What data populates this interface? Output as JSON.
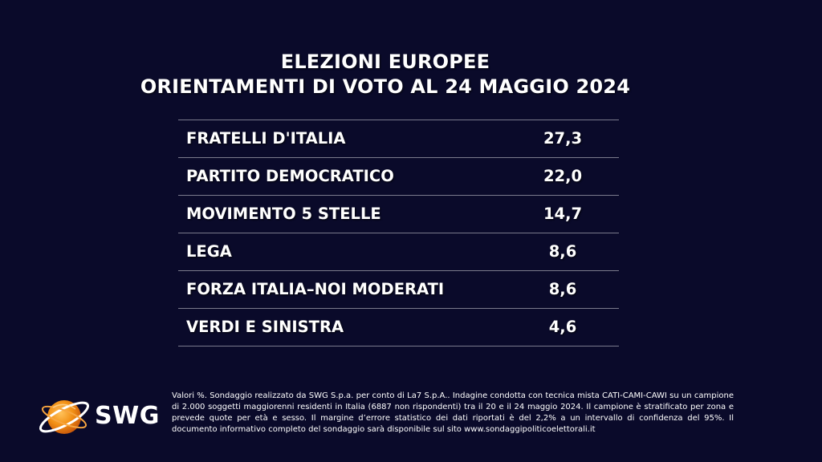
{
  "header": {
    "title_line1": "ELEZIONI EUROPEE",
    "title_line2": "ORIENTAMENTI DI VOTO AL 24 MAGGIO 2024"
  },
  "chart_data": {
    "type": "table",
    "title": "ELEZIONI EUROPEE ORIENTAMENTI DI VOTO AL 24 MAGGIO 2024",
    "rows": [
      {
        "party": "FRATELLI D'ITALIA",
        "value_label": "27,3",
        "value": 27.3
      },
      {
        "party": "PARTITO DEMOCRATICO",
        "value_label": "22,0",
        "value": 22.0
      },
      {
        "party": "MOVIMENTO 5 STELLE",
        "value_label": "14,7",
        "value": 14.7
      },
      {
        "party": "LEGA",
        "value_label": "8,6",
        "value": 8.6
      },
      {
        "party": "FORZA ITALIA–NOI MODERATI",
        "value_label": "8,6",
        "value": 8.6
      },
      {
        "party": "VERDI E SINISTRA",
        "value_label": "4,6",
        "value": 4.6
      }
    ]
  },
  "logo": {
    "text": "SWG",
    "icon": "swg-globe-icon",
    "colors": {
      "orange": "#f29015",
      "dark_orange": "#d4600a",
      "white": "#ffffff"
    }
  },
  "footnote": {
    "text": "Valori %. Sondaggio realizzato da SWG S.p.a. per conto di La7 S.p.A.. Indagine condotta con tecnica mista CATI-CAMI-CAWI su un campione di 2.000 soggetti maggiorenni residenti in Italia (6887 non rispondenti) tra il 20 e il 24 maggio 2024. Il campione è stratificato per zona e prevede quote per età e sesso. Il margine d’errore statistico dei dati riportati è del 2,2% a un intervallo di confidenza del 95%. Il documento informativo completo del sondaggio sarà disponibile sul sito www.sondaggipoliticoelettorali.it"
  },
  "colors": {
    "background": "#0a0a2a",
    "text": "#ffffff",
    "divider": "#7a7a8c"
  }
}
